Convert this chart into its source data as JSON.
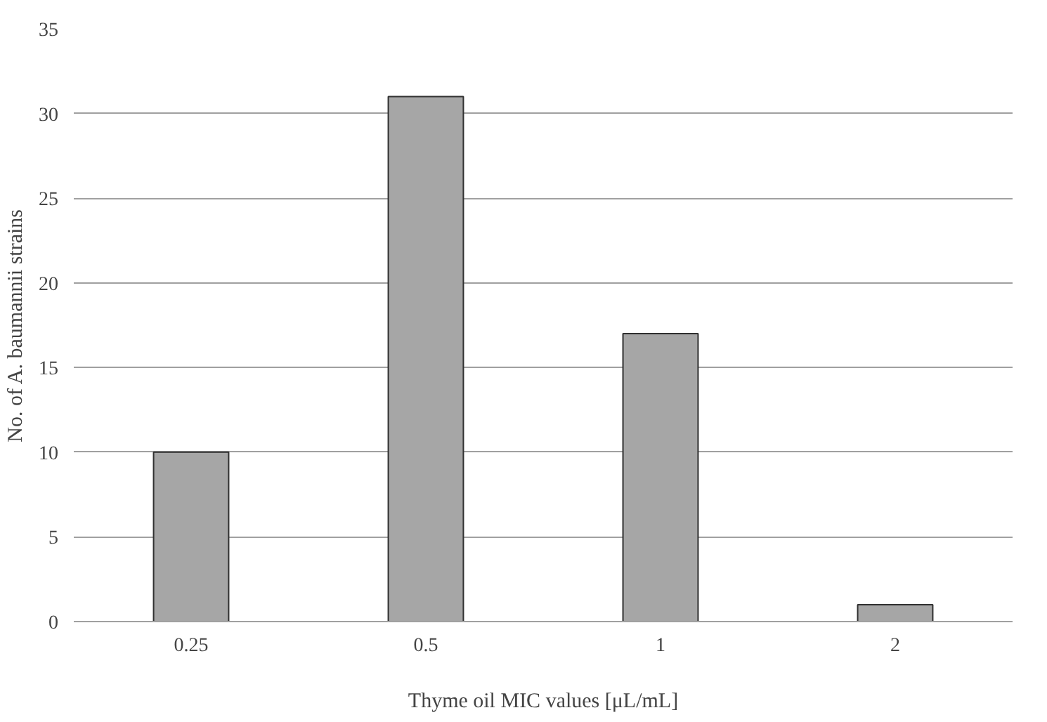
{
  "chart_data": {
    "type": "bar",
    "xlabel": "Thyme oil MIC values [μL/mL]",
    "ylabel": "No. of A. baumannii strains",
    "categories": [
      "0.25",
      "0.5",
      "1",
      "2"
    ],
    "values": [
      10,
      31,
      17,
      1
    ],
    "color": "#a6a6a6",
    "ylim": [
      0,
      35
    ],
    "yticks": [
      0,
      5,
      10,
      15,
      20,
      25,
      30,
      35
    ],
    "grid": "y"
  }
}
